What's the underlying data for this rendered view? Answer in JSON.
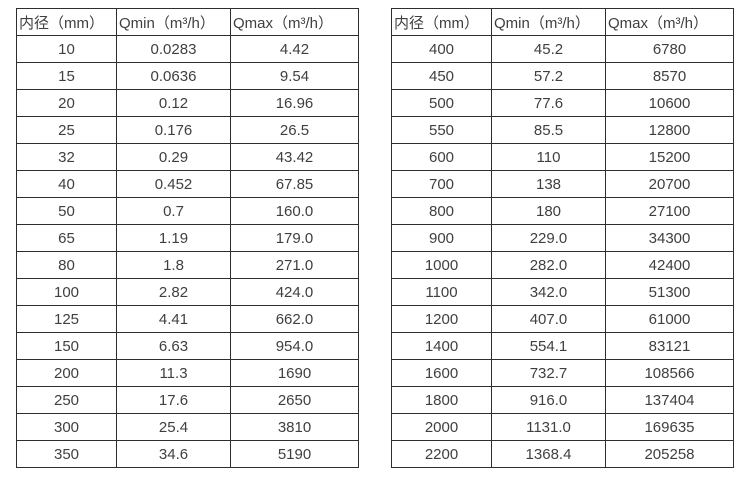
{
  "colors": {
    "background": "#ffffff",
    "text": "#3f3f3f",
    "border": "#2e2e2e"
  },
  "tables": [
    {
      "name": "flow-rate-table-small-diameters",
      "headers": [
        "内径（mm）",
        "Qmin（m³/h）",
        "Qmax（m³/h）"
      ],
      "rows": [
        [
          "10",
          "0.0283",
          "4.42"
        ],
        [
          "15",
          "0.0636",
          "9.54"
        ],
        [
          "20",
          "0.12",
          "16.96"
        ],
        [
          "25",
          "0.176",
          "26.5"
        ],
        [
          "32",
          "0.29",
          "43.42"
        ],
        [
          "40",
          "0.452",
          "67.85"
        ],
        [
          "50",
          "0.7",
          "160.0"
        ],
        [
          "65",
          "1.19",
          "179.0"
        ],
        [
          "80",
          "1.8",
          "271.0"
        ],
        [
          "100",
          "2.82",
          "424.0"
        ],
        [
          "125",
          "4.41",
          "662.0"
        ],
        [
          "150",
          "6.63",
          "954.0"
        ],
        [
          "200",
          "11.3",
          "1690"
        ],
        [
          "250",
          "17.6",
          "2650"
        ],
        [
          "300",
          "25.4",
          "3810"
        ],
        [
          "350",
          "34.6",
          "5190"
        ]
      ]
    },
    {
      "name": "flow-rate-table-large-diameters",
      "headers": [
        "内径（mm）",
        "Qmin（m³/h）",
        "Qmax（m³/h）"
      ],
      "rows": [
        [
          "400",
          "45.2",
          "6780"
        ],
        [
          "450",
          "57.2",
          "8570"
        ],
        [
          "500",
          "77.6",
          "10600"
        ],
        [
          "550",
          "85.5",
          "12800"
        ],
        [
          "600",
          "110",
          "15200"
        ],
        [
          "700",
          "138",
          "20700"
        ],
        [
          "800",
          "180",
          "27100"
        ],
        [
          "900",
          "229.0",
          "34300"
        ],
        [
          "1000",
          "282.0",
          "42400"
        ],
        [
          "1100",
          "342.0",
          "51300"
        ],
        [
          "1200",
          "407.0",
          "61000"
        ],
        [
          "1400",
          "554.1",
          "83121"
        ],
        [
          "1600",
          "732.7",
          "108566"
        ],
        [
          "1800",
          "916.0",
          "137404"
        ],
        [
          "2000",
          "1131.0",
          "169635"
        ],
        [
          "2200",
          "1368.4",
          "205258"
        ]
      ]
    }
  ]
}
